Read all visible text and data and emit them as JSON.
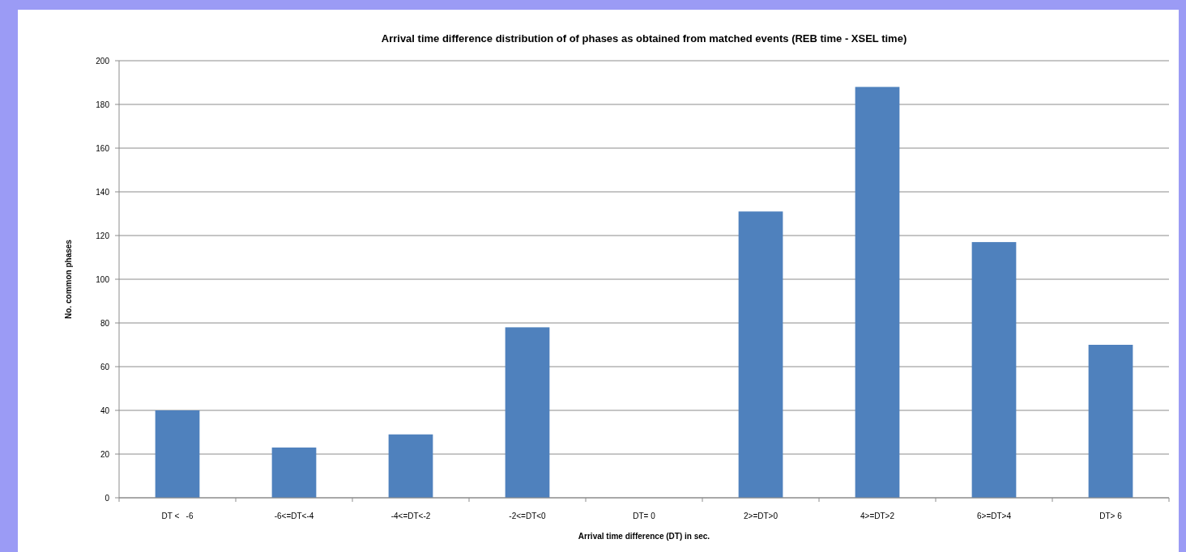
{
  "chart_data": {
    "type": "bar",
    "title": "Arrival time difference distribution of  of phases as obtained from matched events (REB time - XSEL time)",
    "xlabel": "Arrival time difference (DT) in sec.",
    "ylabel": "No. common phases",
    "categories": [
      "DT <   -6",
      "-6<=DT<-4",
      "-4<=DT<-2",
      "-2<=DT<0",
      "DT= 0",
      "2>=DT>0",
      "4>=DT>2",
      "6>=DT>4",
      "DT> 6"
    ],
    "values": [
      40,
      23,
      29,
      78,
      0,
      131,
      188,
      117,
      70
    ],
    "color": "#4f81bd",
    "ylim": [
      0,
      200
    ],
    "yticks": [
      0,
      20,
      40,
      60,
      80,
      100,
      120,
      140,
      160,
      180,
      200
    ],
    "grid": "y"
  }
}
